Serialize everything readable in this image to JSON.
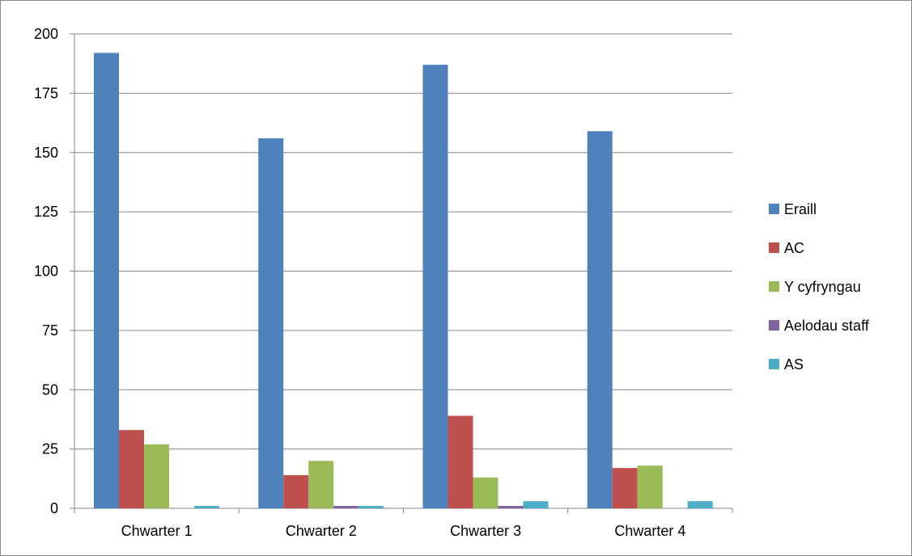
{
  "chart_data": {
    "type": "bar",
    "categories": [
      "Chwarter 1",
      "Chwarter 2",
      "Chwarter 3",
      "Chwarter 4"
    ],
    "series": [
      {
        "name": "Eraill",
        "color": "#4F81BD",
        "values": [
          192,
          156,
          187,
          159
        ]
      },
      {
        "name": "AC",
        "color": "#C0504D",
        "values": [
          33,
          14,
          39,
          17
        ]
      },
      {
        "name": "Y cyfryngau",
        "color": "#9BBB59",
        "values": [
          27,
          20,
          13,
          18
        ]
      },
      {
        "name": "Aelodau staff",
        "color": "#8064A2",
        "values": [
          0,
          1,
          1,
          0
        ]
      },
      {
        "name": "AS",
        "color": "#4BACC6",
        "values": [
          1,
          1,
          3,
          3
        ]
      }
    ],
    "ylim": [
      0,
      200
    ],
    "yticks": [
      0,
      25,
      50,
      75,
      100,
      125,
      150,
      175,
      200
    ],
    "grid": "horizontal",
    "legend": "right",
    "title": "",
    "xlabel": "",
    "ylabel": ""
  }
}
